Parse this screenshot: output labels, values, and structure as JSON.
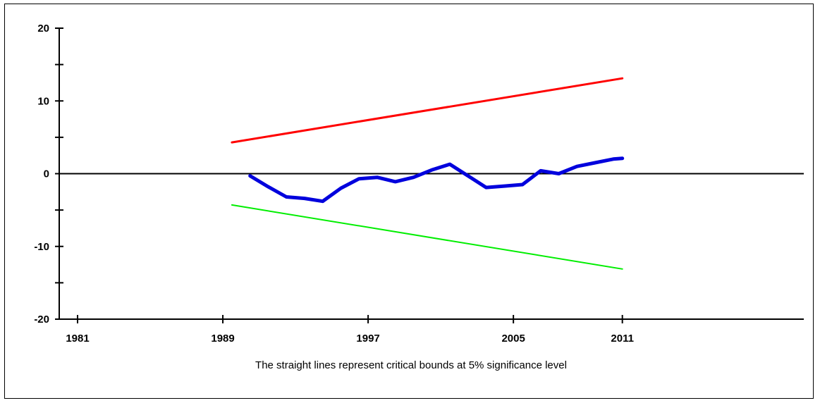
{
  "chart_data": {
    "type": "line",
    "title": "",
    "xlabel": "",
    "ylabel": "",
    "caption": "The straight lines represent critical bounds at 5% significance level",
    "xlim": [
      1981,
      2022
    ],
    "ylim": [
      -20,
      20
    ],
    "x_ticks": [
      1981,
      1989,
      1997,
      2005,
      2011
    ],
    "y_ticks": [
      20,
      10,
      0,
      -10,
      -20
    ],
    "y_minor_ticks": [
      15,
      5,
      -5,
      -15
    ],
    "zero_line": 0,
    "grid": false,
    "legend": "none",
    "series": [
      {
        "color": "#ff0000",
        "x": [
          1989.5,
          2011
        ],
        "y": [
          4.3,
          13.1
        ]
      },
      {
        "color": "#00ee00",
        "x": [
          1989.5,
          2011
        ],
        "y": [
          -4.3,
          -13.1
        ]
      },
      {
        "color": "#0000dd",
        "x": [
          1990.5,
          1991.5,
          1992.5,
          1993.5,
          1994.5,
          1995.5,
          1996.5,
          1997.5,
          1998.5,
          1999.5,
          2000.5,
          2001.5,
          2002.5,
          2003.5,
          2004.5,
          2005.5,
          2006.5,
          2007.5,
          2008.5,
          2009.5,
          2010.5,
          2011
        ],
        "y": [
          -0.3,
          -1.8,
          -3.2,
          -3.4,
          -3.8,
          -2.0,
          -0.7,
          -0.5,
          -1.1,
          -0.5,
          0.5,
          1.3,
          -0.3,
          -1.9,
          -1.7,
          -1.5,
          0.4,
          0.0,
          1.0,
          1.5,
          2.0,
          2.1
        ]
      }
    ]
  }
}
